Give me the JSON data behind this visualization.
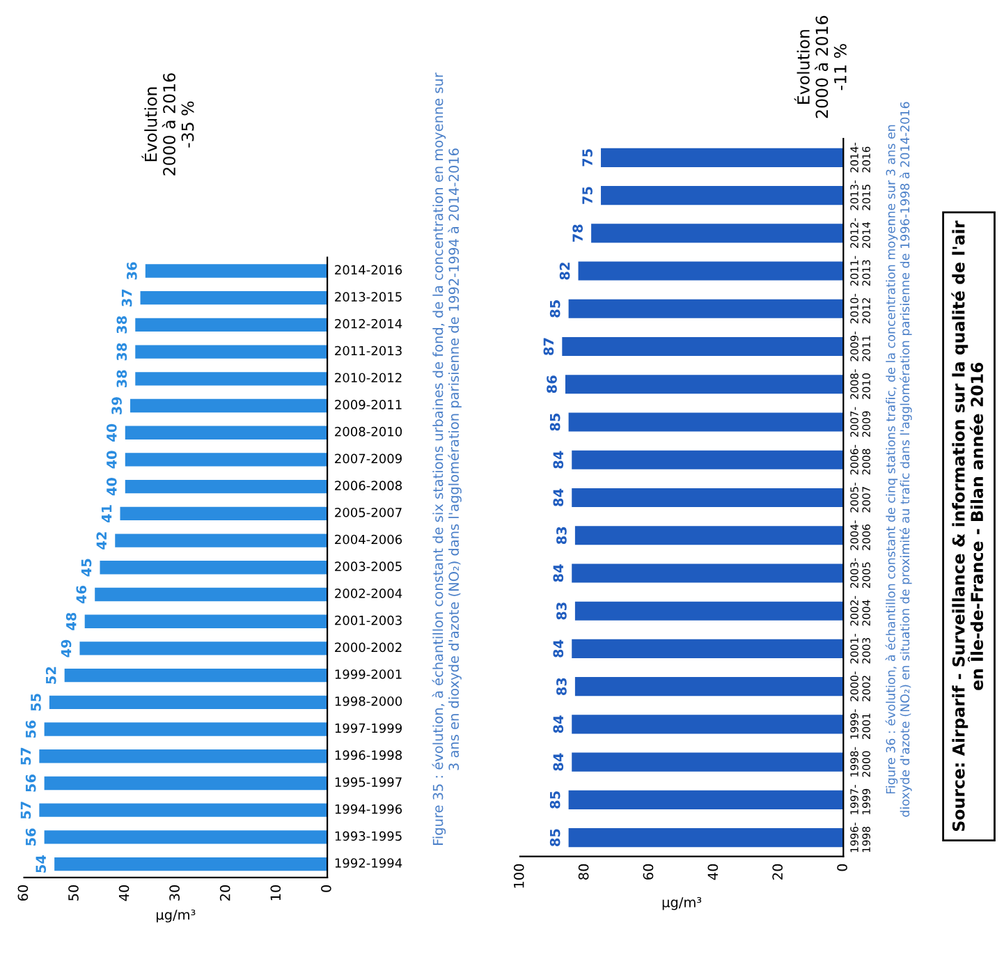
{
  "chart_data": [
    {
      "type": "bar",
      "orientation": "horizontal",
      "xlabel": "µg/m³",
      "categories": [
        "2014-2016",
        "2013-2015",
        "2012-2014",
        "2011-2013",
        "2010-2012",
        "2009-2011",
        "2008-2010",
        "2007-2009",
        "2006-2008",
        "2005-2007",
        "2004-2006",
        "2003-2005",
        "2002-2004",
        "2001-2003",
        "2000-2002",
        "1999-2001",
        "1998-2000",
        "1997-1999",
        "1996-1998",
        "1995-1997",
        "1994-1996",
        "1993-1995",
        "1992-1994"
      ],
      "values": [
        36,
        37,
        38,
        38,
        38,
        39,
        40,
        40,
        40,
        41,
        42,
        45,
        46,
        48,
        49,
        52,
        55,
        56,
        57,
        56,
        57,
        56,
        54
      ],
      "color": "#2a8ce0",
      "xlim": [
        60,
        0
      ],
      "xticks": [
        60,
        50,
        40,
        30,
        20,
        10,
        0
      ],
      "data_labels": true,
      "grid": false,
      "annotations": [
        "Évolution\n2000 à 2016\n-35 %",
        "Figure 35 : évolution, à échantillon constant de six stations urbaines de fond, de la concentration en moyenne sur\n3 ans en dioxyde d'azote (NO₂) dans l'agglomération parisienne de 1992-1994 à 2014-2016"
      ]
    },
    {
      "type": "bar",
      "orientation": "horizontal",
      "xlabel": "µg/m³",
      "categories": [
        "2014-\n2016",
        "2013-\n2015",
        "2012-\n2014",
        "2011-\n2013",
        "2010-\n2012",
        "2009-\n2011",
        "2008-\n2010",
        "2007-\n2009",
        "2006-\n2008",
        "2005-\n2007",
        "2004-\n2006",
        "2003-\n2005",
        "2002-\n2004",
        "2001-\n2003",
        "2000-\n2002",
        "1999-\n2001",
        "1998-\n2000",
        "1997-\n1999",
        "1996-\n1998"
      ],
      "values": [
        75,
        75,
        78,
        82,
        85,
        87,
        86,
        85,
        84,
        84,
        83,
        84,
        83,
        84,
        83,
        84,
        84,
        85,
        85
      ],
      "color": "#1f5cbf",
      "xlim": [
        100,
        0
      ],
      "xticks": [
        100,
        80,
        60,
        40,
        20,
        0
      ],
      "data_labels": true,
      "grid": false,
      "annotations": [
        "Évolution\n2000 à 2016\n-11 %",
        "Figure 36 : évolution, à échantillon constant de cinq stations trafic, de la concentration moyenne sur 3 ans en\ndioxyde d'azote (NO₂) en situation de proximité au trafic dans l'agglomération parisienne de 1996-1998 à 2014-2016",
        "Source: Airparif - Surveillance & information sur la qualité de l'air\nen Île-de-France - Bilan année 2016"
      ]
    }
  ]
}
